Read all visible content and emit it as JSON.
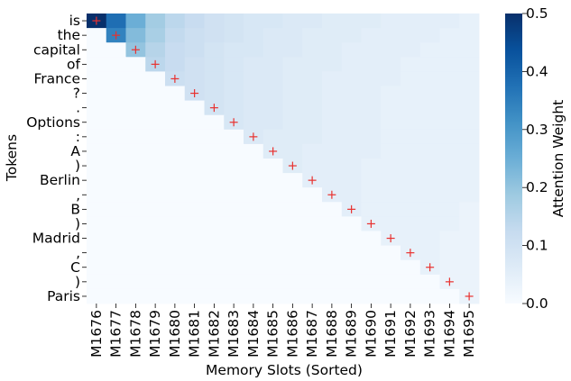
{
  "chart_data": {
    "type": "heatmap",
    "title": "",
    "xlabel": "Memory Slots (Sorted)",
    "ylabel": "Tokens",
    "x_categories": [
      "M1676",
      "M1677",
      "M1678",
      "M1679",
      "M1680",
      "M1681",
      "M1682",
      "M1683",
      "M1684",
      "M1685",
      "M1686",
      "M1687",
      "M1688",
      "M1689",
      "M1690",
      "M1691",
      "M1692",
      "M1693",
      "M1694",
      "M1695"
    ],
    "y_categories": [
      "is",
      "the",
      "capital",
      "of",
      "France",
      "?",
      ".",
      "Options",
      ":",
      "A",
      ")",
      "Berlin",
      ",",
      "B",
      ")",
      "Madrid",
      ",",
      "C",
      ")",
      "Paris"
    ],
    "values": [
      [
        0.5,
        0.38,
        0.25,
        0.18,
        0.14,
        0.12,
        0.1,
        0.09,
        0.08,
        0.08,
        0.07,
        0.07,
        0.06,
        0.06,
        0.06,
        0.05,
        0.05,
        0.05,
        0.05,
        0.04
      ],
      [
        0.0,
        0.34,
        0.22,
        0.17,
        0.13,
        0.11,
        0.1,
        0.09,
        0.08,
        0.07,
        0.07,
        0.06,
        0.06,
        0.06,
        0.05,
        0.05,
        0.05,
        0.05,
        0.04,
        0.04
      ],
      [
        0.0,
        0.0,
        0.2,
        0.15,
        0.12,
        0.11,
        0.09,
        0.08,
        0.08,
        0.07,
        0.07,
        0.06,
        0.06,
        0.05,
        0.05,
        0.05,
        0.05,
        0.04,
        0.04,
        0.04
      ],
      [
        0.0,
        0.0,
        0.0,
        0.14,
        0.12,
        0.1,
        0.09,
        0.08,
        0.07,
        0.07,
        0.06,
        0.06,
        0.06,
        0.05,
        0.05,
        0.05,
        0.04,
        0.04,
        0.04,
        0.04
      ],
      [
        0.0,
        0.0,
        0.0,
        0.0,
        0.11,
        0.1,
        0.09,
        0.08,
        0.07,
        0.07,
        0.06,
        0.06,
        0.05,
        0.05,
        0.05,
        0.05,
        0.04,
        0.04,
        0.04,
        0.04
      ],
      [
        0.0,
        0.0,
        0.0,
        0.0,
        0.0,
        0.1,
        0.09,
        0.08,
        0.07,
        0.07,
        0.06,
        0.06,
        0.05,
        0.05,
        0.05,
        0.04,
        0.04,
        0.04,
        0.04,
        0.04
      ],
      [
        0.0,
        0.0,
        0.0,
        0.0,
        0.0,
        0.0,
        0.09,
        0.08,
        0.07,
        0.07,
        0.06,
        0.06,
        0.05,
        0.05,
        0.05,
        0.04,
        0.04,
        0.04,
        0.04,
        0.04
      ],
      [
        0.0,
        0.0,
        0.0,
        0.0,
        0.0,
        0.0,
        0.0,
        0.08,
        0.07,
        0.07,
        0.06,
        0.06,
        0.05,
        0.05,
        0.05,
        0.04,
        0.04,
        0.04,
        0.04,
        0.04
      ],
      [
        0.0,
        0.0,
        0.0,
        0.0,
        0.0,
        0.0,
        0.0,
        0.0,
        0.07,
        0.06,
        0.06,
        0.06,
        0.05,
        0.05,
        0.05,
        0.04,
        0.04,
        0.04,
        0.04,
        0.04
      ],
      [
        0.0,
        0.0,
        0.0,
        0.0,
        0.0,
        0.0,
        0.0,
        0.0,
        0.0,
        0.06,
        0.06,
        0.05,
        0.05,
        0.05,
        0.05,
        0.04,
        0.04,
        0.04,
        0.04,
        0.04
      ],
      [
        0.0,
        0.0,
        0.0,
        0.0,
        0.0,
        0.0,
        0.0,
        0.0,
        0.0,
        0.0,
        0.06,
        0.05,
        0.05,
        0.05,
        0.04,
        0.04,
        0.04,
        0.04,
        0.04,
        0.04
      ],
      [
        0.0,
        0.0,
        0.0,
        0.0,
        0.0,
        0.0,
        0.0,
        0.0,
        0.0,
        0.0,
        0.0,
        0.05,
        0.05,
        0.05,
        0.04,
        0.04,
        0.04,
        0.04,
        0.04,
        0.04
      ],
      [
        0.0,
        0.0,
        0.0,
        0.0,
        0.0,
        0.0,
        0.0,
        0.0,
        0.0,
        0.0,
        0.0,
        0.0,
        0.05,
        0.05,
        0.04,
        0.04,
        0.04,
        0.04,
        0.04,
        0.04
      ],
      [
        0.0,
        0.0,
        0.0,
        0.0,
        0.0,
        0.0,
        0.0,
        0.0,
        0.0,
        0.0,
        0.0,
        0.0,
        0.0,
        0.05,
        0.04,
        0.04,
        0.04,
        0.04,
        0.04,
        0.03
      ],
      [
        0.0,
        0.0,
        0.0,
        0.0,
        0.0,
        0.0,
        0.0,
        0.0,
        0.0,
        0.0,
        0.0,
        0.0,
        0.0,
        0.0,
        0.04,
        0.04,
        0.04,
        0.04,
        0.04,
        0.03
      ],
      [
        0.0,
        0.0,
        0.0,
        0.0,
        0.0,
        0.0,
        0.0,
        0.0,
        0.0,
        0.0,
        0.0,
        0.0,
        0.0,
        0.0,
        0.0,
        0.04,
        0.04,
        0.04,
        0.03,
        0.03
      ],
      [
        0.0,
        0.0,
        0.0,
        0.0,
        0.0,
        0.0,
        0.0,
        0.0,
        0.0,
        0.0,
        0.0,
        0.0,
        0.0,
        0.0,
        0.0,
        0.0,
        0.04,
        0.04,
        0.03,
        0.03
      ],
      [
        0.0,
        0.0,
        0.0,
        0.0,
        0.0,
        0.0,
        0.0,
        0.0,
        0.0,
        0.0,
        0.0,
        0.0,
        0.0,
        0.0,
        0.0,
        0.0,
        0.0,
        0.04,
        0.03,
        0.03
      ],
      [
        0.0,
        0.0,
        0.0,
        0.0,
        0.0,
        0.0,
        0.0,
        0.0,
        0.0,
        0.0,
        0.0,
        0.0,
        0.0,
        0.0,
        0.0,
        0.0,
        0.0,
        0.0,
        0.03,
        0.03
      ],
      [
        0.0,
        0.0,
        0.0,
        0.0,
        0.0,
        0.0,
        0.0,
        0.0,
        0.0,
        0.0,
        0.0,
        0.0,
        0.0,
        0.0,
        0.0,
        0.0,
        0.0,
        0.0,
        0.0,
        0.03
      ]
    ],
    "markers": {
      "style": "+",
      "color": "#e8312f",
      "positions": [
        [
          0,
          0
        ],
        [
          1,
          1
        ],
        [
          2,
          2
        ],
        [
          3,
          3
        ],
        [
          4,
          4
        ],
        [
          5,
          5
        ],
        [
          6,
          6
        ],
        [
          7,
          7
        ],
        [
          8,
          8
        ],
        [
          9,
          9
        ],
        [
          10,
          10
        ],
        [
          11,
          11
        ],
        [
          12,
          12
        ],
        [
          13,
          13
        ],
        [
          14,
          14
        ],
        [
          15,
          15
        ],
        [
          16,
          16
        ],
        [
          17,
          17
        ],
        [
          18,
          18
        ],
        [
          19,
          19
        ]
      ]
    },
    "colorbar": {
      "label": "Attention Weight",
      "range": [
        0.0,
        0.5
      ],
      "ticks": [
        "0.0",
        "0.1",
        "0.2",
        "0.3",
        "0.4",
        "0.5"
      ],
      "colormap": "Blues"
    },
    "grid": false
  }
}
